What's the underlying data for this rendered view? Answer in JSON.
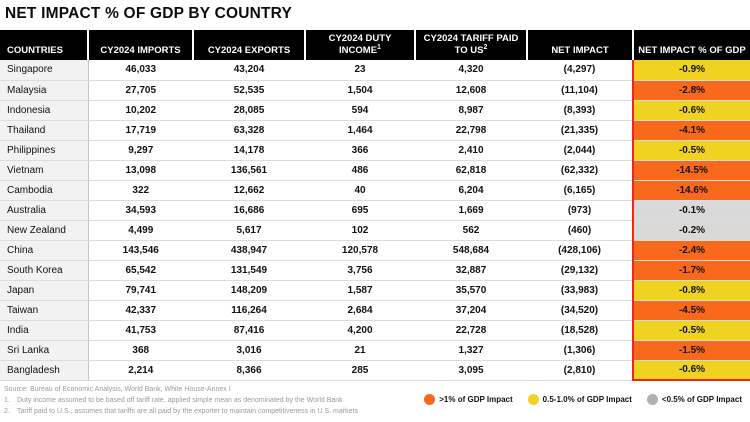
{
  "title": "NET IMPACT % OF GDP BY COUNTRY",
  "colors": {
    "orange": "#F9691C",
    "yellow": "#F0D321",
    "gray": "#D9D9D9",
    "legend_gray": "#B0B0B0",
    "red_accent": "#F3241C",
    "header_bg": "#000000"
  },
  "table": {
    "columns": [
      {
        "label": "COUNTRIES",
        "sup": ""
      },
      {
        "label": "CY2024 IMPORTS",
        "sup": ""
      },
      {
        "label": "CY2024 EXPORTS",
        "sup": ""
      },
      {
        "label": "CY2024 DUTY INCOME",
        "sup": "1"
      },
      {
        "label": "CY2024 TARIFF PAID TO US",
        "sup": "2"
      },
      {
        "label": "NET IMPACT",
        "sup": ""
      },
      {
        "label": "NET IMPACT % OF GDP",
        "sup": ""
      }
    ],
    "rows": [
      {
        "country": "Singapore",
        "imports": "46,033",
        "exports": "43,204",
        "duty_income": "23",
        "tariff_paid": "4,320",
        "net_impact": "(4,297)",
        "net_impact_pct_gdp": "-0.9%",
        "impact_level": "yellow"
      },
      {
        "country": "Malaysia",
        "imports": "27,705",
        "exports": "52,535",
        "duty_income": "1,504",
        "tariff_paid": "12,608",
        "net_impact": "(11,104)",
        "net_impact_pct_gdp": "-2.8%",
        "impact_level": "orange"
      },
      {
        "country": "Indonesia",
        "imports": "10,202",
        "exports": "28,085",
        "duty_income": "594",
        "tariff_paid": "8,987",
        "net_impact": "(8,393)",
        "net_impact_pct_gdp": "-0.6%",
        "impact_level": "yellow"
      },
      {
        "country": "Thailand",
        "imports": "17,719",
        "exports": "63,328",
        "duty_income": "1,464",
        "tariff_paid": "22,798",
        "net_impact": "(21,335)",
        "net_impact_pct_gdp": "-4.1%",
        "impact_level": "orange"
      },
      {
        "country": "Philippines",
        "imports": "9,297",
        "exports": "14,178",
        "duty_income": "366",
        "tariff_paid": "2,410",
        "net_impact": "(2,044)",
        "net_impact_pct_gdp": "-0.5%",
        "impact_level": "yellow"
      },
      {
        "country": "Vietnam",
        "imports": "13,098",
        "exports": "136,561",
        "duty_income": "486",
        "tariff_paid": "62,818",
        "net_impact": "(62,332)",
        "net_impact_pct_gdp": "-14.5%",
        "impact_level": "orange"
      },
      {
        "country": "Cambodia",
        "imports": "322",
        "exports": "12,662",
        "duty_income": "40",
        "tariff_paid": "6,204",
        "net_impact": "(6,165)",
        "net_impact_pct_gdp": "-14.6%",
        "impact_level": "orange"
      },
      {
        "country": "Australia",
        "imports": "34,593",
        "exports": "16,686",
        "duty_income": "695",
        "tariff_paid": "1,669",
        "net_impact": "(973)",
        "net_impact_pct_gdp": "-0.1%",
        "impact_level": "gray"
      },
      {
        "country": "New Zealand",
        "imports": "4,499",
        "exports": "5,617",
        "duty_income": "102",
        "tariff_paid": "562",
        "net_impact": "(460)",
        "net_impact_pct_gdp": "-0.2%",
        "impact_level": "gray"
      },
      {
        "country": "China",
        "imports": "143,546",
        "exports": "438,947",
        "duty_income": "120,578",
        "tariff_paid": "548,684",
        "net_impact": "(428,106)",
        "net_impact_pct_gdp": "-2.4%",
        "impact_level": "orange"
      },
      {
        "country": "South Korea",
        "imports": "65,542",
        "exports": "131,549",
        "duty_income": "3,756",
        "tariff_paid": "32,887",
        "net_impact": "(29,132)",
        "net_impact_pct_gdp": "-1.7%",
        "impact_level": "orange"
      },
      {
        "country": "Japan",
        "imports": "79,741",
        "exports": "148,209",
        "duty_income": "1,587",
        "tariff_paid": "35,570",
        "net_impact": "(33,983)",
        "net_impact_pct_gdp": "-0.8%",
        "impact_level": "yellow"
      },
      {
        "country": "Taiwan",
        "imports": "42,337",
        "exports": "116,264",
        "duty_income": "2,684",
        "tariff_paid": "37,204",
        "net_impact": "(34,520)",
        "net_impact_pct_gdp": "-4.5%",
        "impact_level": "orange"
      },
      {
        "country": "India",
        "imports": "41,753",
        "exports": "87,416",
        "duty_income": "4,200",
        "tariff_paid": "22,728",
        "net_impact": "(18,528)",
        "net_impact_pct_gdp": "-0.5%",
        "impact_level": "yellow"
      },
      {
        "country": "Sri Lanka",
        "imports": "368",
        "exports": "3,016",
        "duty_income": "21",
        "tariff_paid": "1,327",
        "net_impact": "(1,306)",
        "net_impact_pct_gdp": "-1.5%",
        "impact_level": "orange"
      },
      {
        "country": "Bangladesh",
        "imports": "2,214",
        "exports": "8,366",
        "duty_income": "285",
        "tariff_paid": "3,095",
        "net_impact": "(2,810)",
        "net_impact_pct_gdp": "-0.6%",
        "impact_level": "yellow"
      }
    ]
  },
  "legend": {
    "items": [
      {
        "color_key": "orange",
        "label": ">1% of GDP Impact"
      },
      {
        "color_key": "yellow",
        "label": "0.5-1.0% of GDP Impact"
      },
      {
        "color_key": "gray",
        "label": "<0.5% of GDP Impact"
      }
    ]
  },
  "footer": {
    "source": "Source: Bureau of Economic Analysis, World Bank, White House-Annex I",
    "notes": [
      "Duty income assumed to be based off tariff rate, applied simple mean as denominated by the World Bank",
      "Tariff paid to U.S., assumes that tariffs are all paid by the exporter to maintain competitiveness in U.S. markets"
    ]
  },
  "chart_data": {
    "type": "table",
    "title": "NET IMPACT % OF GDP BY COUNTRY",
    "columns": [
      "COUNTRIES",
      "CY2024 IMPORTS",
      "CY2024 EXPORTS",
      "CY2024 DUTY INCOME",
      "CY2024 TARIFF PAID TO US",
      "NET IMPACT",
      "NET IMPACT % OF GDP"
    ],
    "rows": [
      [
        "Singapore",
        46033,
        43204,
        23,
        4320,
        -4297,
        -0.9
      ],
      [
        "Malaysia",
        27705,
        52535,
        1504,
        12608,
        -11104,
        -2.8
      ],
      [
        "Indonesia",
        10202,
        28085,
        594,
        8987,
        -8393,
        -0.6
      ],
      [
        "Thailand",
        17719,
        63328,
        1464,
        22798,
        -21335,
        -4.1
      ],
      [
        "Philippines",
        9297,
        14178,
        366,
        2410,
        -2044,
        -0.5
      ],
      [
        "Vietnam",
        13098,
        136561,
        486,
        62818,
        -62332,
        -14.5
      ],
      [
        "Cambodia",
        322,
        12662,
        40,
        6204,
        -6165,
        -14.6
      ],
      [
        "Australia",
        34593,
        16686,
        695,
        1669,
        -973,
        -0.1
      ],
      [
        "New Zealand",
        4499,
        5617,
        102,
        562,
        -460,
        -0.2
      ],
      [
        "China",
        143546,
        438947,
        120578,
        548684,
        -428106,
        -2.4
      ],
      [
        "South Korea",
        65542,
        131549,
        3756,
        32887,
        -29132,
        -1.7
      ],
      [
        "Japan",
        79741,
        148209,
        1587,
        35570,
        -33983,
        -0.8
      ],
      [
        "Taiwan",
        42337,
        116264,
        2684,
        37204,
        -34520,
        -4.5
      ],
      [
        "India",
        41753,
        87416,
        4200,
        22728,
        -18528,
        -0.5
      ],
      [
        "Sri Lanka",
        368,
        3016,
        21,
        1327,
        -1306,
        -1.5
      ],
      [
        "Bangladesh",
        2214,
        8366,
        285,
        3095,
        -2810,
        -0.6
      ]
    ],
    "color_coding": {
      "orange": ">1% of GDP Impact",
      "yellow": "0.5-1.0% of GDP Impact",
      "gray": "<0.5% of GDP Impact"
    }
  }
}
